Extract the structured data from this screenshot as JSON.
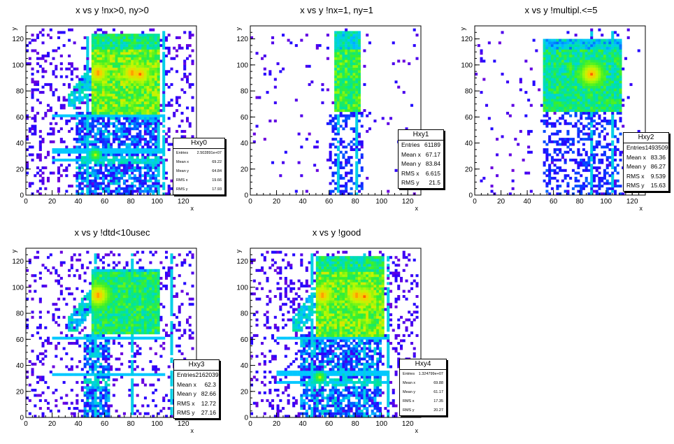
{
  "chart_data": [
    {
      "type": "heatmap",
      "title": "x vs y !nx>0, ny>0",
      "xlabel": "x",
      "ylabel": "y",
      "xlim": [
        0,
        130
      ],
      "ylim": [
        0,
        130
      ],
      "grid": false,
      "legend_position": "lower-right",
      "x_ticks": [
        "0",
        "20",
        "40",
        "60",
        "80",
        "100",
        "120"
      ],
      "y_ticks": [
        "0",
        "20",
        "40",
        "60",
        "80",
        "100",
        "120"
      ],
      "stats": {
        "name": "Hxy0",
        "rows": [
          {
            "label": "Entries",
            "value": "2.502891e+07"
          },
          {
            "label": "Mean x",
            "value": "69.22"
          },
          {
            "label": "Mean y",
            "value": "64.84"
          },
          {
            "label": "RMS x",
            "value": "19.66"
          },
          {
            "label": "RMS y",
            "value": "17.93"
          }
        ]
      },
      "features": {
        "bg": 0.8,
        "block": [
          50,
          100,
          62,
          122
        ],
        "blockVal": 0.72,
        "hot": [
          [
            54,
            93
          ],
          [
            80,
            93
          ],
          [
            86,
            92
          ]
        ],
        "vlines": [
          46,
          100,
          104
        ],
        "hlines": [
          60,
          26,
          33
        ],
        "lowBand": [
          38,
          98
        ],
        "diag": true,
        "blob": [
          [
            52,
            30,
            0.8
          ]
        ]
      }
    },
    {
      "type": "heatmap",
      "title": "x vs y !nx=1, ny=1",
      "xlabel": "x",
      "ylabel": "y",
      "xlim": [
        0,
        130
      ],
      "ylim": [
        0,
        130
      ],
      "grid": false,
      "legend_position": "lower-right",
      "x_ticks": [
        "0",
        "20",
        "40",
        "60",
        "80",
        "100",
        "120"
      ],
      "y_ticks": [
        "0",
        "20",
        "40",
        "60",
        "80",
        "100",
        "120"
      ],
      "stats": {
        "name": "Hxy1",
        "rows": [
          {
            "label": "Entries",
            "value": "61189"
          },
          {
            "label": "Mean x",
            "value": "67.17"
          },
          {
            "label": "Mean y",
            "value": "83.84"
          },
          {
            "label": "RMS x",
            "value": "6.615"
          },
          {
            "label": "RMS y",
            "value": "21.5"
          }
        ]
      },
      "features": {
        "bg": 0.12,
        "block": [
          64,
          82,
          64,
          125
        ],
        "blockVal": 0.65,
        "hot": [],
        "vlines": [
          66,
          80
        ],
        "hlines": [],
        "lowBand": [
          60,
          84
        ],
        "diag": false,
        "blob": []
      }
    },
    {
      "type": "heatmap",
      "title": "x vs y !multipl.<=5",
      "xlabel": "x",
      "ylabel": "y",
      "xlim": [
        0,
        130
      ],
      "ylim": [
        0,
        130
      ],
      "grid": false,
      "legend_position": "lower-right",
      "x_ticks": [
        "0",
        "20",
        "40",
        "60",
        "80",
        "100",
        "120"
      ],
      "y_ticks": [
        "0",
        "20",
        "40",
        "60",
        "80",
        "100",
        "120"
      ],
      "stats": {
        "name": "Hxy2",
        "rows": [
          {
            "label": "Entries",
            "value": "1493509"
          },
          {
            "label": "Mean x",
            "value": "83.36"
          },
          {
            "label": "Mean y",
            "value": "86.27"
          },
          {
            "label": "RMS x",
            "value": "9.539"
          },
          {
            "label": "RMS y",
            "value": "15.63"
          }
        ]
      },
      "features": {
        "bg": 0.15,
        "block": [
          52,
          110,
          64,
          118
        ],
        "blockVal": 0.58,
        "hot": [
          [
            88,
            92
          ]
        ],
        "vlines": [
          88,
          104
        ],
        "hlines": [],
        "lowBand": [
          52,
          110
        ],
        "diag": false,
        "blob": []
      }
    },
    {
      "type": "heatmap",
      "title": "x vs y !dtd<10usec",
      "xlabel": "x",
      "ylabel": "y",
      "xlim": [
        0,
        130
      ],
      "ylim": [
        0,
        130
      ],
      "grid": false,
      "legend_position": "lower-right",
      "x_ticks": [
        "0",
        "20",
        "40",
        "60",
        "80",
        "100",
        "120"
      ],
      "y_ticks": [
        "0",
        "20",
        "40",
        "60",
        "80",
        "100",
        "120"
      ],
      "stats": {
        "name": "Hxy3",
        "rows": [
          {
            "label": "Entries",
            "value": "2162039"
          },
          {
            "label": "Mean x",
            "value": "62.3"
          },
          {
            "label": "Mean y",
            "value": "82.66"
          },
          {
            "label": "RMS x",
            "value": "12.72"
          },
          {
            "label": "RMS y",
            "value": "27.16"
          }
        ]
      },
      "features": {
        "bg": 0.55,
        "block": [
          50,
          100,
          64,
          112
        ],
        "blockVal": 0.6,
        "hot": [
          [
            54,
            93
          ]
        ],
        "vlines": [
          52,
          80,
          110
        ],
        "hlines": [
          60,
          32
        ],
        "lowBand": [
          44,
          62
        ],
        "diag": true,
        "blob": []
      }
    },
    {
      "type": "heatmap",
      "title": "x vs y !good",
      "xlabel": "x",
      "ylabel": "y",
      "xlim": [
        0,
        130
      ],
      "ylim": [
        0,
        130
      ],
      "grid": false,
      "legend_position": "lower-right",
      "x_ticks": [
        "0",
        "20",
        "40",
        "60",
        "80",
        "100",
        "120"
      ],
      "y_ticks": [
        "0",
        "20",
        "40",
        "60",
        "80",
        "100",
        "120"
      ],
      "stats": {
        "name": "Hxy4",
        "rows": [
          {
            "label": "Entries",
            "value": "1.324799e+07"
          },
          {
            "label": "Mean x",
            "value": "69.88"
          },
          {
            "label": "Mean y",
            "value": "61.17"
          },
          {
            "label": "RMS x",
            "value": "17.35"
          },
          {
            "label": "RMS y",
            "value": "20.27"
          }
        ]
      },
      "features": {
        "bg": 0.75,
        "block": [
          50,
          100,
          62,
          122
        ],
        "blockVal": 0.72,
        "hot": [
          [
            54,
            93
          ],
          [
            80,
            93
          ],
          [
            86,
            92
          ]
        ],
        "vlines": [
          46,
          86,
          104
        ],
        "hlines": [
          60,
          26,
          33
        ],
        "lowBand": [
          38,
          98
        ],
        "diag": true,
        "blob": [
          [
            52,
            30,
            0.8
          ]
        ]
      }
    }
  ]
}
